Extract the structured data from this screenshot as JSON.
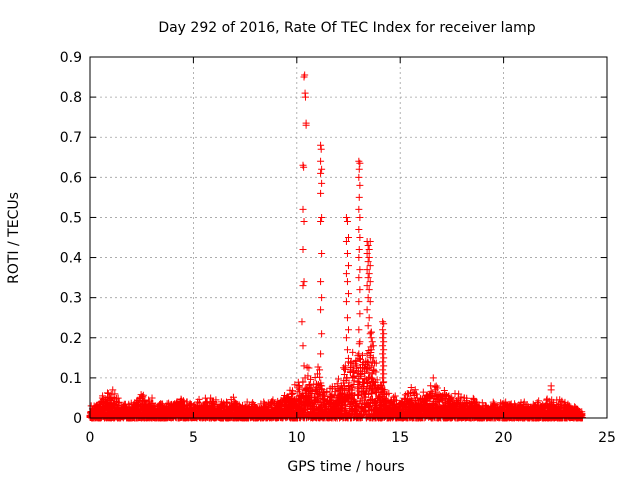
{
  "chart_data": {
    "type": "scatter",
    "title": "Day 292 of 2016, Rate Of TEC Index for receiver lamp",
    "xlabel": "GPS time / hours",
    "ylabel": "ROTI / TECUs",
    "xlim": [
      0,
      25
    ],
    "ylim": [
      0,
      0.9
    ],
    "xticks": [
      0,
      5,
      10,
      15,
      20,
      25
    ],
    "yticks": [
      0,
      0.1,
      0.2,
      0.3,
      0.4,
      0.5,
      0.6,
      0.7,
      0.8,
      0.9
    ],
    "xtick_labels": [
      "0",
      "5",
      "10",
      "15",
      "20",
      "25"
    ],
    "ytick_labels": [
      "0",
      "0.1",
      "0.2",
      "0.3",
      "0.4",
      "0.5",
      "0.6",
      "0.7",
      "0.8",
      "0.9"
    ],
    "grid": true,
    "marker": "+",
    "color": "#ff0000",
    "baseline_x_range": [
      0,
      23.8
    ],
    "envelope": [
      [
        0,
        0.02
      ],
      [
        0.5,
        0.04
      ],
      [
        1.0,
        0.06
      ],
      [
        1.5,
        0.03
      ],
      [
        2.0,
        0.03
      ],
      [
        2.5,
        0.05
      ],
      [
        3.0,
        0.03
      ],
      [
        3.5,
        0.03
      ],
      [
        4.0,
        0.03
      ],
      [
        4.5,
        0.04
      ],
      [
        5.0,
        0.03
      ],
      [
        5.5,
        0.04
      ],
      [
        6.0,
        0.04
      ],
      [
        6.5,
        0.03
      ],
      [
        7.0,
        0.04
      ],
      [
        7.5,
        0.03
      ],
      [
        8.0,
        0.03
      ],
      [
        8.5,
        0.03
      ],
      [
        9.0,
        0.04
      ],
      [
        9.5,
        0.05
      ],
      [
        10.0,
        0.07
      ],
      [
        10.5,
        0.1
      ],
      [
        11.0,
        0.1
      ],
      [
        11.5,
        0.05
      ],
      [
        12.0,
        0.08
      ],
      [
        12.5,
        0.12
      ],
      [
        13.0,
        0.14
      ],
      [
        13.5,
        0.18
      ],
      [
        14.0,
        0.08
      ],
      [
        14.5,
        0.05
      ],
      [
        15.0,
        0.04
      ],
      [
        15.5,
        0.06
      ],
      [
        16.0,
        0.05
      ],
      [
        16.5,
        0.08
      ],
      [
        17.0,
        0.06
      ],
      [
        17.5,
        0.05
      ],
      [
        18.0,
        0.04
      ],
      [
        18.5,
        0.04
      ],
      [
        19.0,
        0.03
      ],
      [
        19.5,
        0.03
      ],
      [
        20.0,
        0.03
      ],
      [
        20.5,
        0.03
      ],
      [
        21.0,
        0.03
      ],
      [
        21.5,
        0.03
      ],
      [
        22.0,
        0.04
      ],
      [
        22.5,
        0.04
      ],
      [
        23.0,
        0.03
      ],
      [
        23.8,
        0.02
      ]
    ],
    "points": [
      [
        0.2,
        0.03
      ],
      [
        0.6,
        0.05
      ],
      [
        1.1,
        0.07
      ],
      [
        1.2,
        0.06
      ],
      [
        2.4,
        0.05
      ],
      [
        3.0,
        0.05
      ],
      [
        4.2,
        0.04
      ],
      [
        5.2,
        0.04
      ],
      [
        5.9,
        0.04
      ],
      [
        6.6,
        0.04
      ],
      [
        7.6,
        0.04
      ],
      [
        8.4,
        0.04
      ],
      [
        9.4,
        0.05
      ],
      [
        9.8,
        0.06
      ],
      [
        16.6,
        0.1
      ],
      [
        16.7,
        0.07
      ],
      [
        18.1,
        0.05
      ],
      [
        20.1,
        0.04
      ],
      [
        21.0,
        0.04
      ],
      [
        22.3,
        0.08
      ],
      [
        22.3,
        0.07
      ],
      [
        10.35,
        0.85
      ],
      [
        10.38,
        0.855
      ],
      [
        10.4,
        0.81
      ],
      [
        10.42,
        0.8
      ],
      [
        10.45,
        0.73
      ],
      [
        10.45,
        0.735
      ],
      [
        10.3,
        0.63
      ],
      [
        10.33,
        0.625
      ],
      [
        10.3,
        0.52
      ],
      [
        10.35,
        0.49
      ],
      [
        10.3,
        0.42
      ],
      [
        10.35,
        0.34
      ],
      [
        10.3,
        0.33
      ],
      [
        10.25,
        0.24
      ],
      [
        10.3,
        0.18
      ],
      [
        10.35,
        0.13
      ],
      [
        10.4,
        0.1
      ],
      [
        10.3,
        0.09
      ],
      [
        10.4,
        0.07
      ],
      [
        11.15,
        0.68
      ],
      [
        11.18,
        0.67
      ],
      [
        11.15,
        0.64
      ],
      [
        11.2,
        0.62
      ],
      [
        11.15,
        0.61
      ],
      [
        11.2,
        0.585
      ],
      [
        11.15,
        0.56
      ],
      [
        11.2,
        0.5
      ],
      [
        11.15,
        0.49
      ],
      [
        11.2,
        0.41
      ],
      [
        11.15,
        0.34
      ],
      [
        11.2,
        0.3
      ],
      [
        11.15,
        0.27
      ],
      [
        11.2,
        0.21
      ],
      [
        11.15,
        0.16
      ],
      [
        11.1,
        0.12
      ],
      [
        11.2,
        0.08
      ],
      [
        11.0,
        0.11
      ],
      [
        12.4,
        0.5
      ],
      [
        12.45,
        0.49
      ],
      [
        12.5,
        0.45
      ],
      [
        12.4,
        0.44
      ],
      [
        12.45,
        0.41
      ],
      [
        12.5,
        0.38
      ],
      [
        12.4,
        0.36
      ],
      [
        12.45,
        0.34
      ],
      [
        12.5,
        0.31
      ],
      [
        12.4,
        0.29
      ],
      [
        12.45,
        0.25
      ],
      [
        12.5,
        0.22
      ],
      [
        12.4,
        0.2
      ],
      [
        12.45,
        0.17
      ],
      [
        12.5,
        0.14
      ],
      [
        12.6,
        0.12
      ],
      [
        12.7,
        0.1
      ],
      [
        12.3,
        0.08
      ],
      [
        13.0,
        0.64
      ],
      [
        13.05,
        0.635
      ],
      [
        13.02,
        0.62
      ],
      [
        13.0,
        0.6
      ],
      [
        13.05,
        0.58
      ],
      [
        13.02,
        0.55
      ],
      [
        13.0,
        0.52
      ],
      [
        13.05,
        0.5
      ],
      [
        13.0,
        0.47
      ],
      [
        13.05,
        0.45
      ],
      [
        13.02,
        0.42
      ],
      [
        13.0,
        0.4
      ],
      [
        13.05,
        0.37
      ],
      [
        13.0,
        0.35
      ],
      [
        13.05,
        0.32
      ],
      [
        13.0,
        0.29
      ],
      [
        13.05,
        0.26
      ],
      [
        13.0,
        0.22
      ],
      [
        13.05,
        0.19
      ],
      [
        13.0,
        0.16
      ],
      [
        12.9,
        0.13
      ],
      [
        13.1,
        0.11
      ],
      [
        12.95,
        0.09
      ],
      [
        13.4,
        0.44
      ],
      [
        13.45,
        0.43
      ],
      [
        13.5,
        0.42
      ],
      [
        13.55,
        0.44
      ],
      [
        13.4,
        0.41
      ],
      [
        13.5,
        0.4
      ],
      [
        13.45,
        0.39
      ],
      [
        13.55,
        0.38
      ],
      [
        13.4,
        0.37
      ],
      [
        13.5,
        0.36
      ],
      [
        13.45,
        0.35
      ],
      [
        13.55,
        0.34
      ],
      [
        13.4,
        0.33
      ],
      [
        13.5,
        0.32
      ],
      [
        13.45,
        0.3
      ],
      [
        13.55,
        0.29
      ],
      [
        13.4,
        0.27
      ],
      [
        13.5,
        0.25
      ],
      [
        13.45,
        0.23
      ],
      [
        13.55,
        0.21
      ],
      [
        13.6,
        0.2
      ],
      [
        13.65,
        0.19
      ],
      [
        13.7,
        0.18
      ],
      [
        13.6,
        0.17
      ],
      [
        13.7,
        0.15
      ],
      [
        13.65,
        0.14
      ],
      [
        13.6,
        0.13
      ],
      [
        13.7,
        0.12
      ],
      [
        13.65,
        0.11
      ],
      [
        13.6,
        0.1
      ],
      [
        13.7,
        0.09
      ],
      [
        13.8,
        0.08
      ],
      [
        14.15,
        0.24
      ],
      [
        14.2,
        0.235
      ],
      [
        14.15,
        0.22
      ],
      [
        14.2,
        0.21
      ],
      [
        14.15,
        0.2
      ],
      [
        14.2,
        0.19
      ],
      [
        14.15,
        0.18
      ],
      [
        14.2,
        0.17
      ],
      [
        14.15,
        0.16
      ],
      [
        14.2,
        0.15
      ],
      [
        14.15,
        0.14
      ],
      [
        14.2,
        0.13
      ],
      [
        14.15,
        0.12
      ],
      [
        14.2,
        0.11
      ],
      [
        14.15,
        0.1
      ],
      [
        14.2,
        0.09
      ],
      [
        14.1,
        0.08
      ],
      [
        14.25,
        0.07
      ]
    ]
  }
}
